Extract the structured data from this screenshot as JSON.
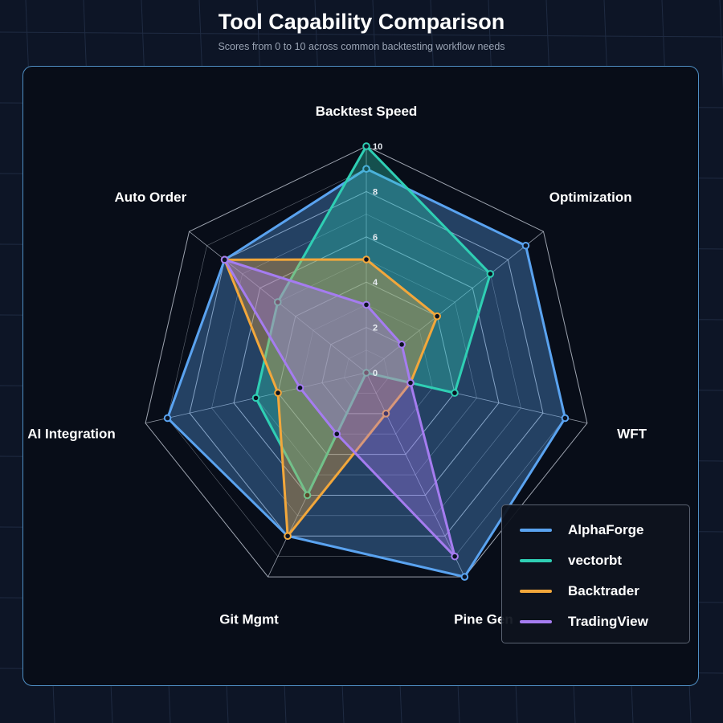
{
  "header": {
    "title": "Tool Capability Comparison",
    "subtitle": "Scores from 0 to 10 across common backtesting workflow needs"
  },
  "colors": {
    "background": "#0d1526",
    "panel": "#080d18",
    "panel_border": "#4f8fc4",
    "grid": "#cfd6e2"
  },
  "chart_data": {
    "type": "radar",
    "title": "Tool Capability Comparison",
    "subtitle": "Scores from 0 to 10 across common backtesting workflow needs",
    "axes": [
      "Backtest Speed",
      "Optimization",
      "WFT",
      "Pine Gen",
      "Git Mgmt",
      "AI Integration",
      "Auto Order"
    ],
    "range": [
      0,
      10
    ],
    "ticks": [
      0,
      2,
      4,
      6,
      8,
      10
    ],
    "grid": true,
    "legend_position": "bottom-right",
    "series": [
      {
        "name": "AlphaForge",
        "color": "#5aa3f0",
        "values": [
          9,
          9,
          9,
          10,
          8,
          9,
          8
        ]
      },
      {
        "name": "vectorbt",
        "color": "#2fcfb4",
        "values": [
          10,
          7,
          4,
          0,
          6,
          5,
          5
        ]
      },
      {
        "name": "Backtrader",
        "color": "#f2a73b",
        "values": [
          5,
          4,
          2,
          2,
          8,
          4,
          8
        ]
      },
      {
        "name": "TradingView",
        "color": "#a57cf0",
        "values": [
          3,
          2,
          2,
          9,
          3,
          3,
          8
        ]
      }
    ]
  },
  "legend": {
    "items": [
      {
        "label": "AlphaForge",
        "color": "#5aa3f0"
      },
      {
        "label": "vectorbt",
        "color": "#2fcfb4"
      },
      {
        "label": "Backtrader",
        "color": "#f2a73b"
      },
      {
        "label": "TradingView",
        "color": "#a57cf0"
      }
    ]
  }
}
